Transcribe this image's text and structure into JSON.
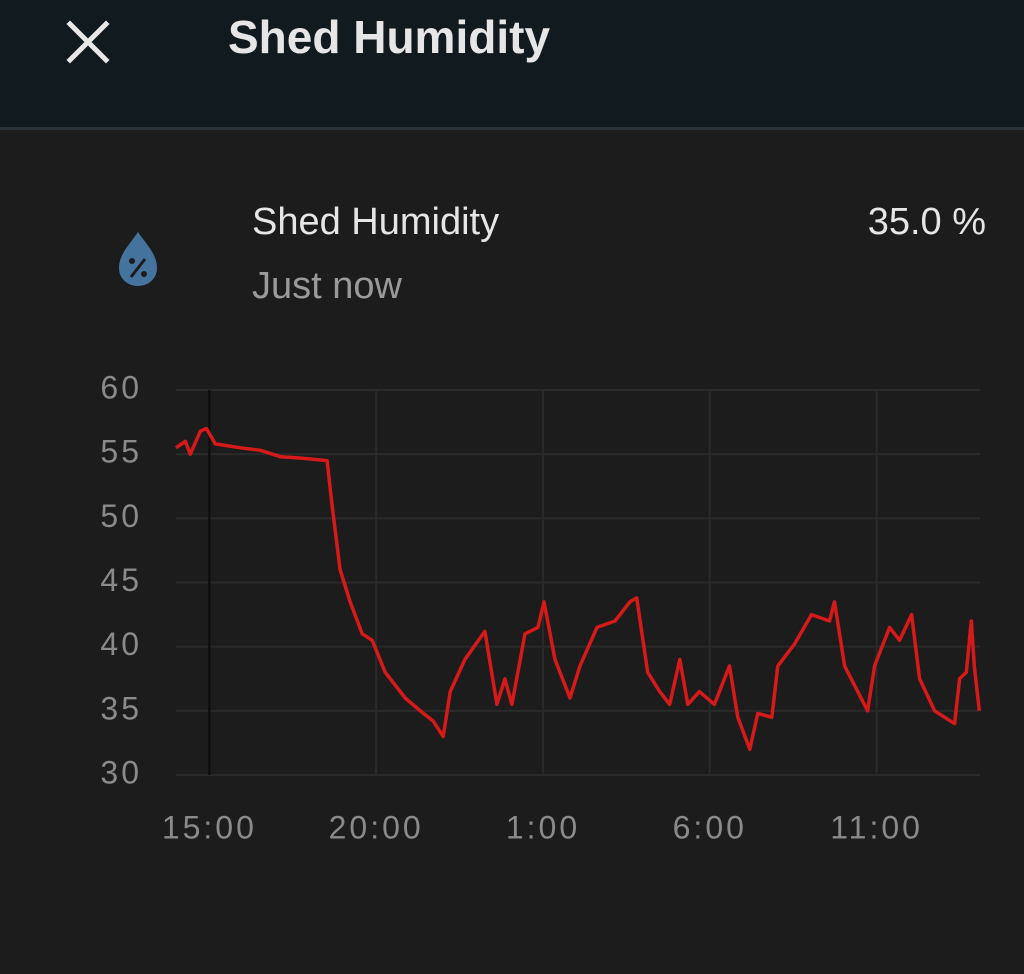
{
  "header": {
    "title": "Shed Humidity"
  },
  "entity": {
    "name": "Shed Humidity",
    "state": "35.0 %",
    "last_changed": "Just now"
  },
  "chart_data": {
    "type": "line",
    "x": [
      14.0,
      14.28,
      14.43,
      14.73,
      14.91,
      15.18,
      15.93,
      16.53,
      17.13,
      17.72,
      18.53,
      18.68,
      18.92,
      19.22,
      19.58,
      19.88,
      20.27,
      20.57,
      20.87,
      21.32,
      21.71,
      22.01,
      22.22,
      22.66,
      23.26,
      23.62,
      23.86,
      24.07,
      24.46,
      24.85,
      25.03,
      25.36,
      25.81,
      26.11,
      26.62,
      27.16,
      27.61,
      27.81,
      28.14,
      28.5,
      28.8,
      29.1,
      29.34,
      29.69,
      30.14,
      30.59,
      30.84,
      31.2,
      31.44,
      31.86,
      32.04,
      32.54,
      33.05,
      33.59,
      33.74,
      34.04,
      34.73,
      34.94,
      35.39,
      35.69,
      36.05,
      36.29,
      36.74,
      37.34,
      37.49,
      37.69,
      37.84,
      37.93,
      38.08
    ],
    "series": [
      {
        "name": "Shed Humidity",
        "color": "#d61a1a",
        "values": [
          55.5,
          56,
          55,
          56.8,
          57,
          55.8,
          55.5,
          55.3,
          54.8,
          54.7,
          54.5,
          51,
          46,
          43.5,
          41,
          40.5,
          38,
          37,
          36,
          35,
          34.2,
          33,
          36.5,
          39,
          41.2,
          35.5,
          37.5,
          35.5,
          41,
          41.5,
          43.5,
          39,
          36,
          38.5,
          41.5,
          42,
          43.5,
          43.8,
          38,
          36.5,
          35.5,
          39,
          35.5,
          36.5,
          35.5,
          38.5,
          34.5,
          32,
          34.8,
          34.5,
          38.5,
          40.2,
          42.5,
          42,
          43.5,
          38.5,
          35,
          38.5,
          41.5,
          40.5,
          42.5,
          37.5,
          35,
          34,
          37.5,
          38,
          42,
          38.5,
          35
        ]
      }
    ],
    "xlim": [
      14.0,
      38.1
    ],
    "xticks": [
      {
        "value": 15,
        "label": "15:00"
      },
      {
        "value": 20,
        "label": "20:00"
      },
      {
        "value": 25,
        "label": "1:00"
      },
      {
        "value": 30,
        "label": "6:00"
      },
      {
        "value": 35,
        "label": "11:00"
      }
    ],
    "ylim": [
      30,
      60
    ],
    "yticks": [
      30,
      35,
      40,
      45,
      50,
      55,
      60
    ],
    "grid": true
  }
}
